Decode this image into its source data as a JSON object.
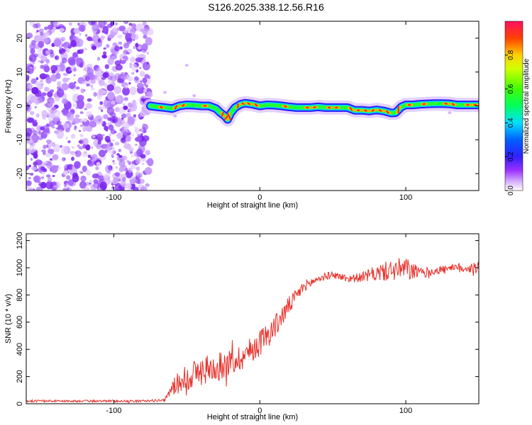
{
  "title": "S126.2025.338.12.56.R16",
  "chart_data": [
    {
      "type": "heatmap",
      "panel": "top",
      "xlabel": "Height of straight line (km)",
      "ylabel": "Frequency (Hz)",
      "xlim": [
        -160,
        150
      ],
      "ylim": [
        -25,
        25
      ],
      "xticks": [
        -100,
        0,
        100
      ],
      "xtick_labels": [
        "-100",
        "0",
        "100"
      ],
      "yticks": [
        -20,
        -10,
        0,
        10,
        20
      ],
      "ytick_labels": [
        "-20",
        "-10",
        "0",
        "10",
        "20"
      ],
      "noise_region_x": [
        -160,
        -75
      ],
      "ridge": {
        "x": [
          -75,
          -70,
          -65,
          -60,
          -55,
          -50,
          -45,
          -40,
          -35,
          -30,
          -27,
          -24,
          -22,
          -20,
          -17,
          -13,
          -10,
          -5,
          0,
          5,
          10,
          15,
          20,
          25,
          30,
          35,
          40,
          45,
          50,
          55,
          60,
          65,
          70,
          75,
          80,
          85,
          90,
          93,
          97,
          100,
          105,
          110,
          115,
          120,
          125,
          130,
          135,
          140,
          145,
          150
        ],
        "y": [
          0,
          -0.3,
          -0.5,
          -0.8,
          0,
          0.3,
          0.2,
          0,
          0,
          -0.8,
          -2,
          -3,
          -4,
          -2.2,
          -0.5,
          0.5,
          0.8,
          0.5,
          0,
          0.3,
          0.2,
          0,
          -0.3,
          -0.5,
          -0.5,
          -0.5,
          -0.3,
          -0.5,
          -0.5,
          -0.5,
          -0.5,
          -1.3,
          -1.3,
          -1.5,
          -1.2,
          -1.5,
          -2.1,
          -2,
          -0.3,
          0.3,
          0.3,
          0.5,
          0.6,
          0.7,
          0.7,
          0.6,
          0.3,
          0.3,
          0.3,
          0.3
        ]
      },
      "colorbar": {
        "label": "Normalized spectral amplitude",
        "range": [
          0,
          1
        ],
        "ticks": [
          0,
          0.2,
          0.4,
          0.6,
          0.8
        ],
        "tick_labels": [
          "0.0",
          "0.2",
          "0.4",
          "0.6",
          "0.8"
        ]
      }
    },
    {
      "type": "line",
      "panel": "bottom",
      "xlabel": "Height of straight line (km)",
      "ylabel": "SNR (10 * v/v)",
      "xlim": [
        -160,
        150
      ],
      "ylim": [
        0,
        1250
      ],
      "xticks": [
        -100,
        0,
        100
      ],
      "xtick_labels": [
        "-100",
        "0",
        "100"
      ],
      "yticks": [
        0,
        200,
        400,
        600,
        800,
        1000,
        1200
      ],
      "ytick_labels": [
        "0",
        "200",
        "400",
        "600",
        "800",
        "1000",
        "1200"
      ],
      "series": [
        {
          "name": "SNR",
          "color": "#e8302a",
          "envelope_x": [
            -160,
            -80,
            -65,
            -60,
            -50,
            -40,
            -30,
            -20,
            -10,
            0,
            10,
            20,
            30,
            40,
            50,
            60,
            70,
            80,
            90,
            100,
            110,
            120,
            130,
            140,
            150
          ],
          "envelope_mean": [
            20,
            20,
            25,
            120,
            200,
            240,
            270,
            300,
            360,
            450,
            560,
            720,
            860,
            920,
            950,
            920,
            930,
            960,
            980,
            990,
            960,
            980,
            990,
            1000,
            1000
          ],
          "envelope_noise": [
            8,
            8,
            10,
            60,
            110,
            110,
            100,
            100,
            100,
            100,
            90,
            70,
            40,
            30,
            25,
            30,
            35,
            60,
            80,
            90,
            40,
            35,
            35,
            40,
            50
          ]
        }
      ]
    }
  ]
}
